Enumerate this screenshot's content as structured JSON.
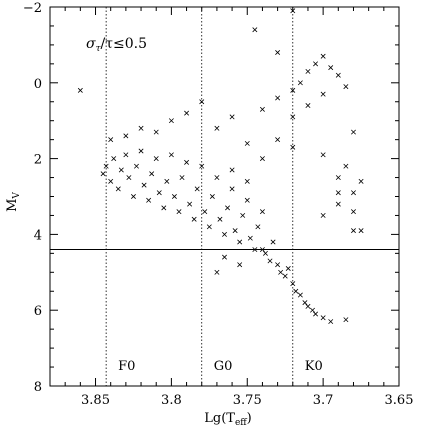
{
  "chart_data": {
    "type": "scatter",
    "title": "",
    "xlabel": "Lg(T_eff)",
    "ylabel": "M_V",
    "xlim": [
      3.88,
      3.65
    ],
    "ylim": [
      8,
      -2
    ],
    "x_ticks": [
      3.85,
      3.8,
      3.75,
      3.7,
      3.65
    ],
    "y_ticks": [
      -2,
      0,
      2,
      4,
      6,
      8
    ],
    "x_tick_labels": [
      "3.85",
      "3.8",
      "3.75",
      "3.7",
      "3.65"
    ],
    "y_tick_labels": [
      "−2",
      "0",
      "2",
      "4",
      "6",
      "8"
    ],
    "grid": false,
    "marker": "x",
    "annotation_text": "στ/τ≤0.5",
    "annotation_parts": {
      "sigma": "σ",
      "sub": "τ",
      "rest": "/τ≤0.5"
    },
    "ylabel_parts": {
      "main": "M",
      "sub": "V"
    },
    "xlabel_parts": {
      "main": "Lg(T",
      "sub": "eff",
      "close": ")"
    },
    "reference_lines": {
      "vertical": [
        {
          "x": 3.843,
          "style": "dotted",
          "label": "F0"
        },
        {
          "x": 3.78,
          "style": "dotted",
          "label": "G0"
        },
        {
          "x": 3.72,
          "style": "dotted",
          "label": "K0"
        }
      ],
      "horizontal": [
        {
          "y": 4.4,
          "style": "solid"
        }
      ]
    },
    "series": [
      {
        "points": [
          [
            3.845,
            2.4
          ],
          [
            3.843,
            2.2
          ],
          [
            3.84,
            2.6
          ],
          [
            3.838,
            2.0
          ],
          [
            3.835,
            2.8
          ],
          [
            3.833,
            2.3
          ],
          [
            3.83,
            1.9
          ],
          [
            3.828,
            2.5
          ],
          [
            3.825,
            3.0
          ],
          [
            3.823,
            2.2
          ],
          [
            3.82,
            1.8
          ],
          [
            3.818,
            2.7
          ],
          [
            3.815,
            3.1
          ],
          [
            3.813,
            2.4
          ],
          [
            3.81,
            2.0
          ],
          [
            3.808,
            2.9
          ],
          [
            3.805,
            3.3
          ],
          [
            3.803,
            2.6
          ],
          [
            3.8,
            1.9
          ],
          [
            3.798,
            3.0
          ],
          [
            3.795,
            3.4
          ],
          [
            3.793,
            2.5
          ],
          [
            3.79,
            2.1
          ],
          [
            3.788,
            3.2
          ],
          [
            3.785,
            3.6
          ],
          [
            3.783,
            2.8
          ],
          [
            3.78,
            2.2
          ],
          [
            3.778,
            3.4
          ],
          [
            3.775,
            3.8
          ],
          [
            3.773,
            3.0
          ],
          [
            3.77,
            2.5
          ],
          [
            3.768,
            3.6
          ],
          [
            3.765,
            4.0
          ],
          [
            3.763,
            3.3
          ],
          [
            3.76,
            2.8
          ],
          [
            3.758,
            3.9
          ],
          [
            3.755,
            4.2
          ],
          [
            3.753,
            3.5
          ],
          [
            3.75,
            3.1
          ],
          [
            3.748,
            4.1
          ],
          [
            3.745,
            4.4
          ],
          [
            3.743,
            3.8
          ],
          [
            3.74,
            3.4
          ],
          [
            3.738,
            4.5
          ],
          [
            3.735,
            4.7
          ],
          [
            3.733,
            4.2
          ],
          [
            3.73,
            4.8
          ],
          [
            3.728,
            5.0
          ],
          [
            3.725,
            5.1
          ],
          [
            3.723,
            4.9
          ],
          [
            3.72,
            5.3
          ],
          [
            3.718,
            5.5
          ],
          [
            3.715,
            5.6
          ],
          [
            3.712,
            5.8
          ],
          [
            3.71,
            5.9
          ],
          [
            3.707,
            6.0
          ],
          [
            3.705,
            6.1
          ],
          [
            3.7,
            6.2
          ],
          [
            3.695,
            6.3
          ],
          [
            3.685,
            6.25
          ],
          [
            3.84,
            1.5
          ],
          [
            3.83,
            1.4
          ],
          [
            3.82,
            1.2
          ],
          [
            3.81,
            1.3
          ],
          [
            3.8,
            1.0
          ],
          [
            3.79,
            0.8
          ],
          [
            3.78,
            0.5
          ],
          [
            3.77,
            1.2
          ],
          [
            3.76,
            0.9
          ],
          [
            3.75,
            1.6
          ],
          [
            3.74,
            0.7
          ],
          [
            3.73,
            0.4
          ],
          [
            3.72,
            0.2
          ],
          [
            3.715,
            0.0
          ],
          [
            3.71,
            -0.3
          ],
          [
            3.705,
            -0.5
          ],
          [
            3.7,
            -0.7
          ],
          [
            3.695,
            -0.4
          ],
          [
            3.69,
            -0.2
          ],
          [
            3.685,
            0.1
          ],
          [
            3.7,
            0.3
          ],
          [
            3.71,
            0.6
          ],
          [
            3.72,
            0.9
          ],
          [
            3.73,
            1.5
          ],
          [
            3.74,
            2.0
          ],
          [
            3.75,
            2.6
          ],
          [
            3.76,
            2.3
          ],
          [
            3.72,
            1.7
          ],
          [
            3.7,
            1.9
          ],
          [
            3.69,
            2.5
          ],
          [
            3.68,
            2.9
          ],
          [
            3.69,
            3.2
          ],
          [
            3.7,
            3.5
          ],
          [
            3.68,
            3.9
          ],
          [
            3.685,
            2.2
          ],
          [
            3.675,
            2.6
          ],
          [
            3.68,
            1.3
          ],
          [
            3.73,
            -0.8
          ],
          [
            3.745,
            -1.4
          ],
          [
            3.72,
            -1.9
          ],
          [
            3.86,
            0.2
          ],
          [
            3.74,
            4.4
          ],
          [
            3.755,
            4.8
          ],
          [
            3.765,
            4.6
          ],
          [
            3.77,
            5.0
          ],
          [
            3.68,
            3.4
          ],
          [
            3.675,
            3.9
          ],
          [
            3.69,
            2.9
          ]
        ]
      }
    ]
  }
}
